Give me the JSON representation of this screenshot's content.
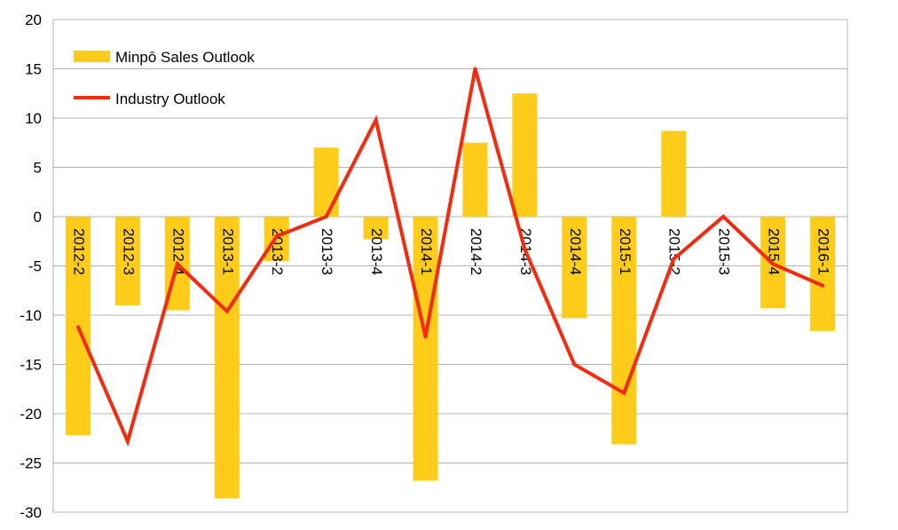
{
  "chart_data": {
    "type": "bar",
    "categories": [
      "2012-2",
      "2012-3",
      "2012-4",
      "2013-1",
      "2013-2",
      "2013-3",
      "2013-4",
      "2014-1",
      "2014-2",
      "2014-3",
      "2014-4",
      "2015-1",
      "2015-2",
      "2015-3",
      "2015-4",
      "2016-1"
    ],
    "series": [
      {
        "name": "Minpō Sales Outlook",
        "kind": "bar",
        "color": "#FFCC1A",
        "values": [
          -22.2,
          -9,
          -9.5,
          -28.6,
          -4.5,
          7,
          -2.3,
          -26.8,
          7.5,
          12.5,
          -10.3,
          -23.1,
          8.7,
          0,
          -9.3,
          -11.6
        ]
      },
      {
        "name": "Industry Outlook",
        "kind": "line",
        "color": "#F52A0E",
        "values": [
          -11.2,
          -22.8,
          -4.8,
          -9.6,
          -2,
          0,
          9.8,
          -12.2,
          15,
          -3.3,
          -15,
          -17.9,
          -4.3,
          0,
          -4.8,
          -7
        ]
      }
    ],
    "yticks": [
      "20",
      "15",
      "10",
      "5",
      "0",
      "-5",
      "-10",
      "-15",
      "-20",
      "-25",
      "-30"
    ],
    "ylim": [
      -30,
      20
    ],
    "grid": true,
    "legend": "top-left"
  }
}
